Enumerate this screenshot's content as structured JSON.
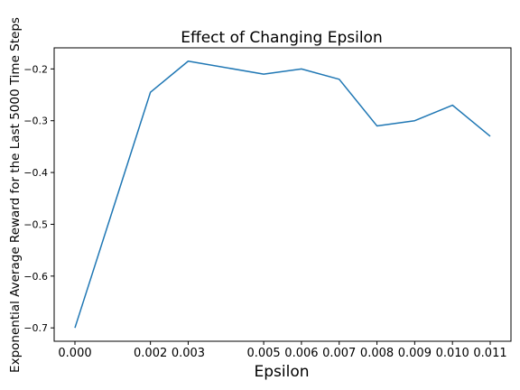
{
  "chart_data": {
    "type": "line",
    "title": "Effect of Changing Epsilon",
    "xlabel": "Epsilon",
    "ylabel": "Exponential Average Reward for the Last 5000 Time Steps",
    "x": [
      0.0,
      0.002,
      0.003,
      0.005,
      0.006,
      0.007,
      0.008,
      0.009,
      0.01,
      0.011
    ],
    "x_tick_labels": [
      "0.000",
      "0.002",
      "0.003",
      "0.005",
      "0.006",
      "0.007",
      "0.008",
      "0.009",
      "0.010",
      "0.011"
    ],
    "series": [
      {
        "values": [
          -0.7,
          -0.245,
          -0.185,
          -0.21,
          -0.2,
          -0.22,
          -0.31,
          -0.3,
          -0.27,
          -0.33
        ],
        "color": "#1f77b4"
      }
    ],
    "y_ticks": [
      -0.2,
      -0.3,
      -0.4,
      -0.5,
      -0.6,
      -0.7
    ],
    "y_tick_labels": [
      "−0.2",
      "−0.3",
      "−0.4",
      "−0.5",
      "−0.6",
      "−0.7"
    ],
    "xlim": [
      -0.00055,
      0.01155
    ],
    "ylim": [
      -0.7258,
      -0.1593
    ],
    "grid": false,
    "legend": false
  }
}
